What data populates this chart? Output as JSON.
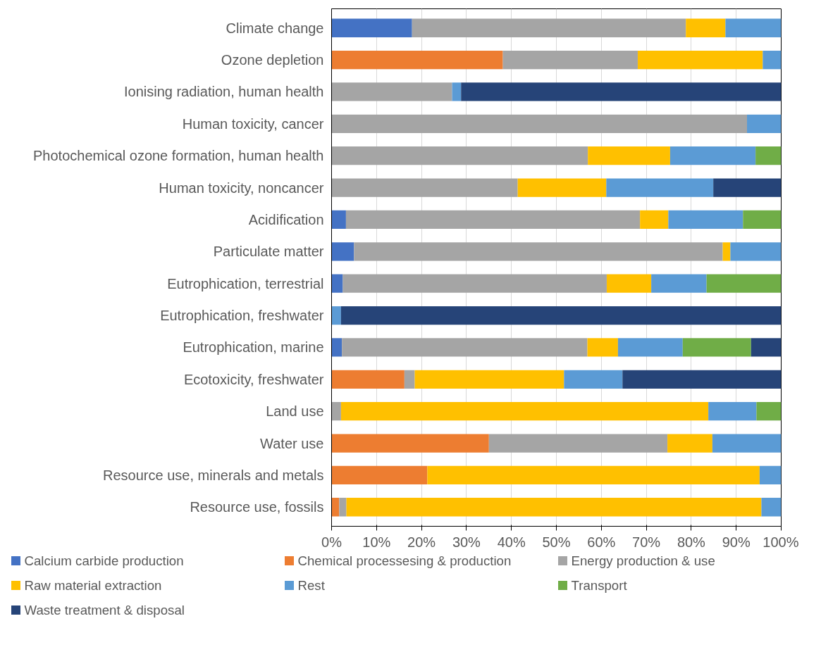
{
  "chart_data": {
    "type": "bar",
    "orientation": "horizontal",
    "stacked": true,
    "categories": [
      "Climate change",
      "Ozone depletion",
      "Ionising radiation, human health",
      "Human toxicity, cancer",
      "Photochemical ozone formation, human health",
      "Human toxicity, noncancer",
      "Acidification",
      "Particulate matter",
      "Eutrophication, terrestrial",
      "Eutrophication, freshwater",
      "Eutrophication, marine",
      "Ecotoxicity, freshwater",
      "Land use",
      "Water use",
      "Resource use, minerals and metals",
      "Resource use, fossils"
    ],
    "series": [
      {
        "name": "Calcium carbide production",
        "color": "#4472c4",
        "values": [
          17.9,
          0,
          0,
          0,
          0,
          0,
          3.2,
          5.0,
          2.5,
          0,
          2.3,
          0,
          0,
          0,
          0,
          0
        ]
      },
      {
        "name": "Chemical processesing & production",
        "color": "#ed7d31",
        "values": [
          0,
          38.1,
          0,
          0,
          0,
          0,
          0,
          0,
          0,
          0,
          0,
          16.2,
          0,
          35.0,
          21.3,
          1.7
        ]
      },
      {
        "name": "Energy production & use",
        "color": "#a5a5a5",
        "values": [
          60.9,
          30.0,
          26.8,
          92.4,
          57.0,
          41.4,
          65.4,
          82.0,
          58.7,
          0,
          54.6,
          2.3,
          2.1,
          39.7,
          0,
          1.6
        ]
      },
      {
        "name": "Raw material extraction",
        "color": "#ffc000",
        "values": [
          8.8,
          27.8,
          0,
          0,
          18.3,
          19.7,
          6.3,
          1.7,
          9.9,
          0,
          6.8,
          33.2,
          81.7,
          10.0,
          73.9,
          92.3
        ]
      },
      {
        "name": "Rest",
        "color": "#5b9bd5",
        "values": [
          12.4,
          4.1,
          2.0,
          7.6,
          19.0,
          23.8,
          16.6,
          11.3,
          12.3,
          2.1,
          14.4,
          13.0,
          10.7,
          15.3,
          4.8,
          4.4
        ]
      },
      {
        "name": "Transport",
        "color": "#70ad47",
        "values": [
          0,
          0,
          0,
          0,
          5.7,
          0,
          8.5,
          0,
          16.6,
          0,
          15.2,
          0,
          5.5,
          0,
          0,
          0
        ]
      },
      {
        "name": "Waste treatment & disposal",
        "color": "#264478",
        "values": [
          0,
          0,
          71.2,
          0,
          0,
          15.1,
          0,
          0,
          0,
          97.9,
          6.7,
          35.3,
          0,
          0,
          0,
          0
        ]
      }
    ],
    "xlim": [
      0,
      100
    ],
    "xticks": [
      {
        "value": 0,
        "label": "0%"
      },
      {
        "value": 10,
        "label": "10%"
      },
      {
        "value": 20,
        "label": "20%"
      },
      {
        "value": 30,
        "label": "30%"
      },
      {
        "value": 40,
        "label": "40%"
      },
      {
        "value": 50,
        "label": "50%"
      },
      {
        "value": 60,
        "label": "60%"
      },
      {
        "value": 70,
        "label": "70%"
      },
      {
        "value": 80,
        "label": "80%"
      },
      {
        "value": 90,
        "label": "90%"
      },
      {
        "value": 100,
        "label": "100%"
      }
    ],
    "grid": "x",
    "legend": "bottom"
  }
}
